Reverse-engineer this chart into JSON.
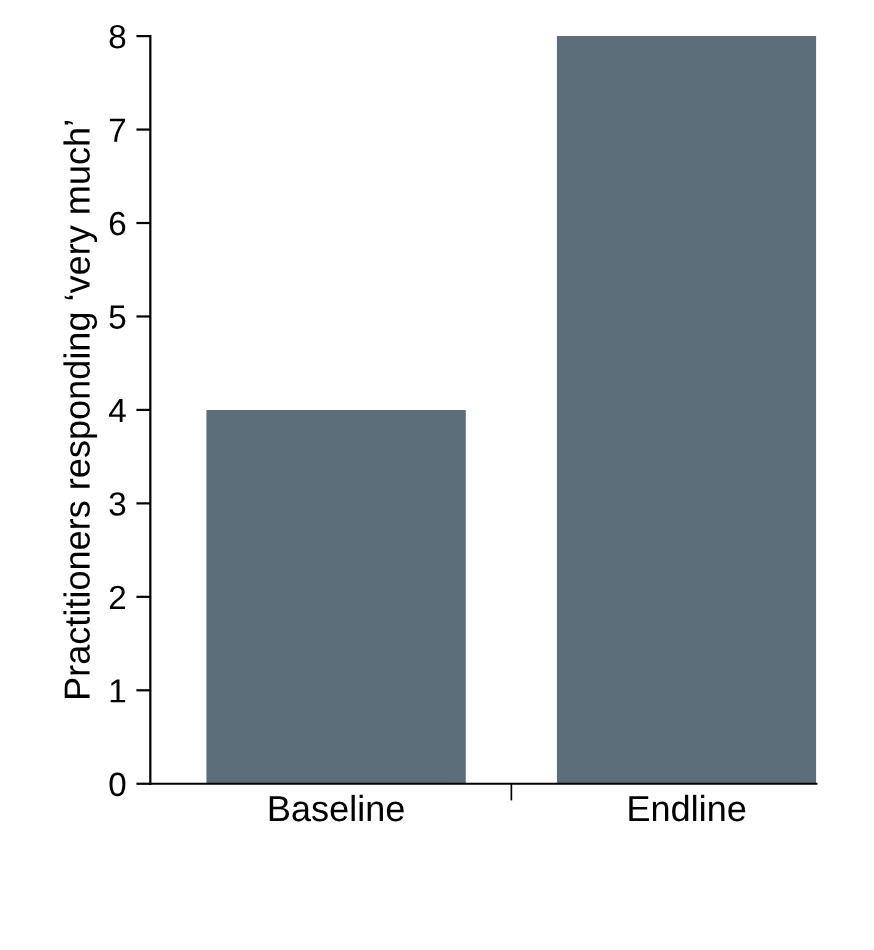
{
  "chart_data": {
    "type": "bar",
    "ylabel": "Practitioners responding ‘very much’",
    "categories": [
      "Baseline",
      "Endline"
    ],
    "series": [
      {
        "color": "#5c6e7a",
        "values": [
          4,
          8
        ]
      }
    ],
    "ylim": [
      0,
      8
    ],
    "yticks": [
      0,
      1,
      2,
      3,
      4,
      5,
      6,
      7,
      8
    ],
    "grid": false,
    "legend": false
  }
}
